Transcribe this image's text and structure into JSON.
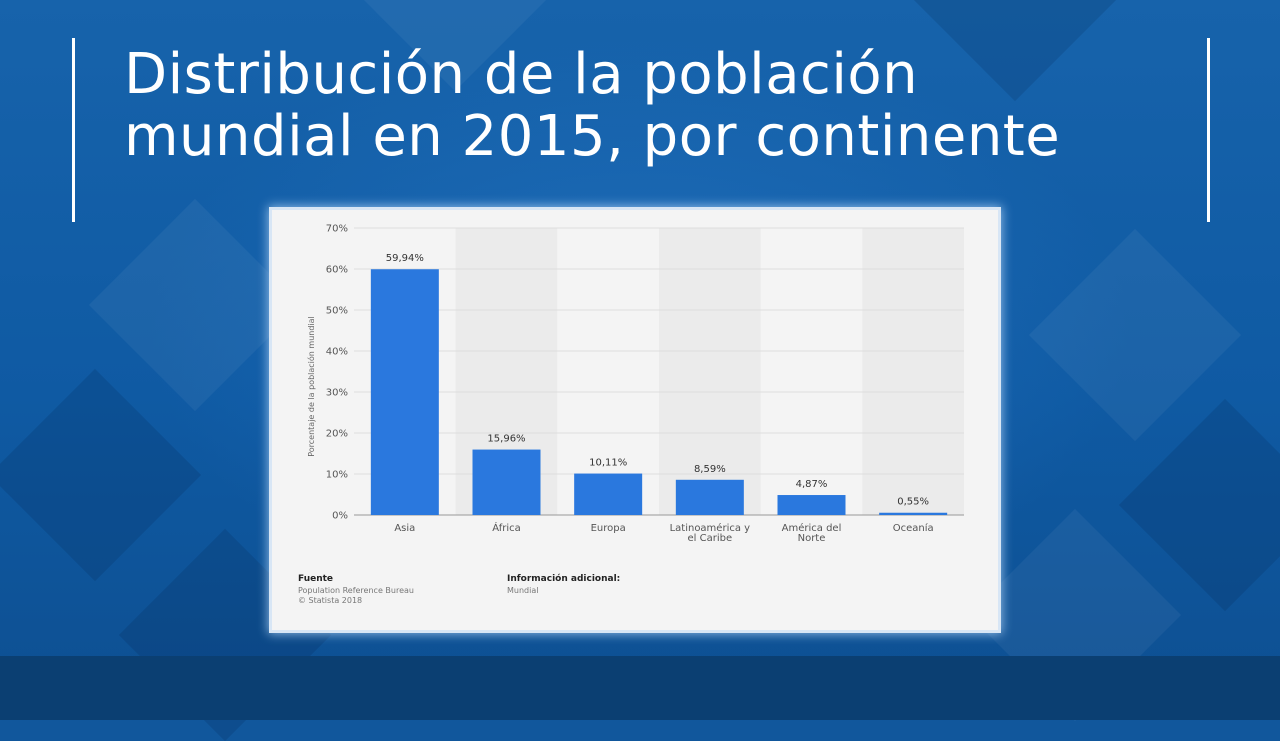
{
  "slide": {
    "title_line1": "Distribución de la población",
    "title_line2": "mundial en 2015, por continente"
  },
  "chart_data": {
    "type": "bar",
    "categories": [
      [
        "Asia"
      ],
      [
        "África"
      ],
      [
        "Europa"
      ],
      [
        "Latinoamérica y",
        "el Caribe"
      ],
      [
        "América del",
        "Norte"
      ],
      [
        "Oceanía"
      ]
    ],
    "values": [
      59.94,
      15.96,
      10.11,
      8.59,
      4.87,
      0.55
    ],
    "value_labels": [
      "59,94%",
      "15,96%",
      "10,11%",
      "8,59%",
      "4,87%",
      "0,55%"
    ],
    "ylabel": "Porcentaje de la población mundial",
    "ylim": [
      0,
      70
    ],
    "yticks": [
      "0%",
      "10%",
      "20%",
      "30%",
      "40%",
      "50%",
      "60%",
      "70%"
    ],
    "grid": true,
    "bar_color": "#2a78de"
  },
  "source": {
    "heading": "Fuente",
    "lines": [
      "Population Reference Bureau",
      "© Statista 2018"
    ]
  },
  "additional_info": {
    "heading": "Información adicional:",
    "lines": [
      "Mundial"
    ]
  },
  "colors": {
    "background": "#11579c",
    "title": "#ffffff",
    "bar": "#2a78de"
  }
}
